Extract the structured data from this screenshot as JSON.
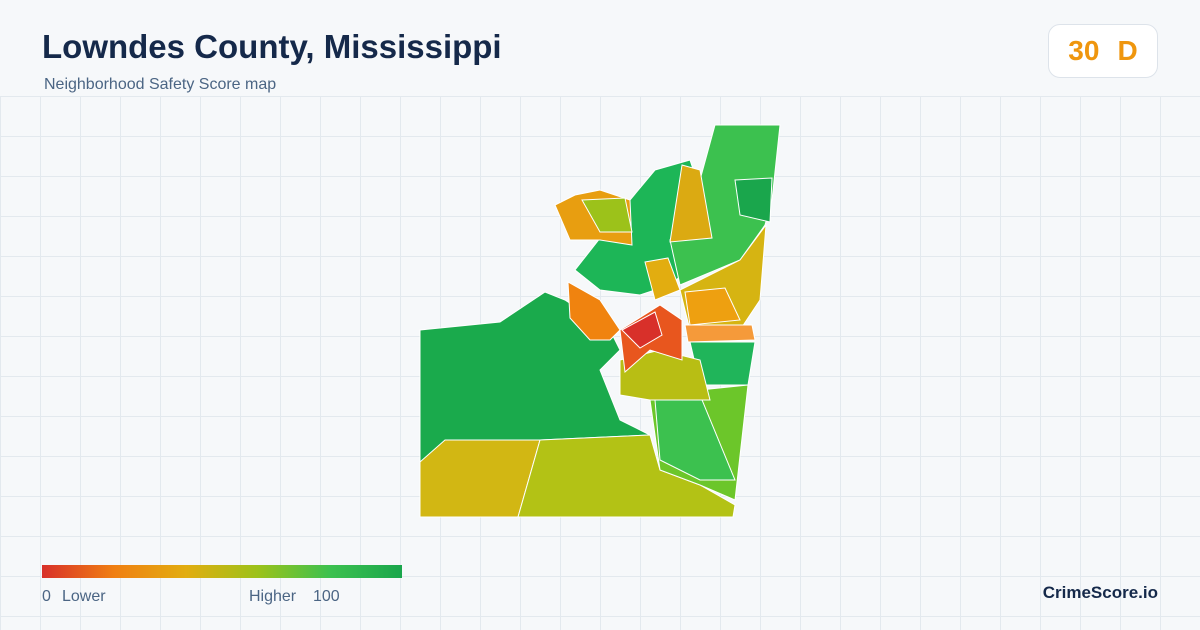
{
  "header": {
    "title": "Lowndes County, Mississippi",
    "subtitle": "Neighborhood Safety Score map"
  },
  "score": {
    "value": 30,
    "grade": "D"
  },
  "legend": {
    "min": 0,
    "min_label": "Lower",
    "max_label": "Higher",
    "max": 100
  },
  "brand": "CrimeScore.io"
}
